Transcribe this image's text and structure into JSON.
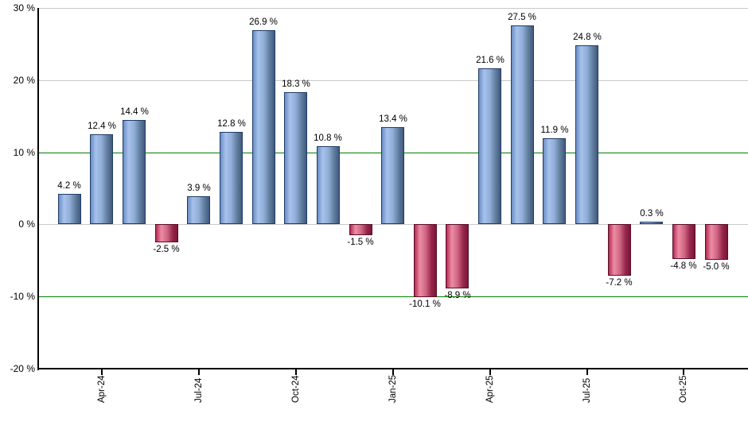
{
  "chart_data": {
    "type": "bar",
    "title": "",
    "xlabel": "",
    "ylabel": "",
    "ylim": [
      -20,
      30
    ],
    "grid": "on",
    "legend": null,
    "y_ticks": [
      {
        "value": 30,
        "label": "30 %",
        "line": "gray"
      },
      {
        "value": 20,
        "label": "20 %",
        "line": "gray"
      },
      {
        "value": 10,
        "label": "10 %",
        "line": "green"
      },
      {
        "value": 0,
        "label": "0 %",
        "line": "gray"
      },
      {
        "value": -10,
        "label": "-10 %",
        "line": "green"
      },
      {
        "value": -20,
        "label": "-20 %",
        "line": "axis"
      }
    ],
    "bars": [
      {
        "month": "Mar-24",
        "value": 4.2,
        "label": "4.2 %"
      },
      {
        "month": "Apr-24",
        "value": 12.4,
        "label": "12.4 %",
        "axis_tick": true
      },
      {
        "month": "May-24",
        "value": 14.4,
        "label": "14.4 %"
      },
      {
        "month": "Jun-24",
        "value": -2.5,
        "label": "-2.5 %"
      },
      {
        "month": "Jul-24",
        "value": 3.9,
        "label": "3.9 %",
        "axis_tick": true
      },
      {
        "month": "Aug-24",
        "value": 12.8,
        "label": "12.8 %"
      },
      {
        "month": "Sep-24",
        "value": 26.9,
        "label": "26.9 %"
      },
      {
        "month": "Oct-24",
        "value": 18.3,
        "label": "18.3 %",
        "axis_tick": true
      },
      {
        "month": "Nov-24",
        "value": 10.8,
        "label": "10.8 %"
      },
      {
        "month": "Dec-24",
        "value": -1.5,
        "label": "-1.5 %"
      },
      {
        "month": "Jan-25",
        "value": 13.4,
        "label": "13.4 %",
        "axis_tick": true
      },
      {
        "month": "Feb-25",
        "value": -10.1,
        "label": "-10.1 %"
      },
      {
        "month": "Mar-25",
        "value": -8.9,
        "label": "-8.9 %"
      },
      {
        "month": "Apr-25",
        "value": 21.6,
        "label": "21.6 %",
        "axis_tick": true
      },
      {
        "month": "May-25",
        "value": 27.5,
        "label": "27.5 %"
      },
      {
        "month": "Jun-25",
        "value": 11.9,
        "label": "11.9 %"
      },
      {
        "month": "Jul-25",
        "value": 24.8,
        "label": "24.8 %",
        "axis_tick": true
      },
      {
        "month": "Aug-25",
        "value": -7.2,
        "label": "-7.2 %"
      },
      {
        "month": "Sep-25",
        "value": 0.3,
        "label": "0.3 %"
      },
      {
        "month": "Oct-25",
        "value": -4.8,
        "label": "-4.8 %",
        "axis_tick": true
      },
      {
        "month": "Nov-25",
        "value": -5.0,
        "label": "-5.0 %"
      }
    ],
    "x_tick_labels": [
      "Apr-24",
      "Jul-24",
      "Oct-24",
      "Jan-25",
      "Apr-25",
      "Jul-25",
      "Oct-25"
    ],
    "colors": {
      "background": "#ffffff",
      "grid": "#c9c9c9",
      "threshold_line": "#007d00",
      "axis": "#000000",
      "text": "#000000",
      "positive_gradient": [
        "#6a8ec4",
        "#a7c2ec",
        "#90aed9",
        "#63809f",
        "#41597f"
      ],
      "positive_border": "#203c66",
      "negative_gradient": [
        "#b5295371",
        "#ec8da4",
        "#cf6583",
        "#97264b",
        "#7a1636"
      ],
      "negative_border": "#58102a"
    }
  }
}
